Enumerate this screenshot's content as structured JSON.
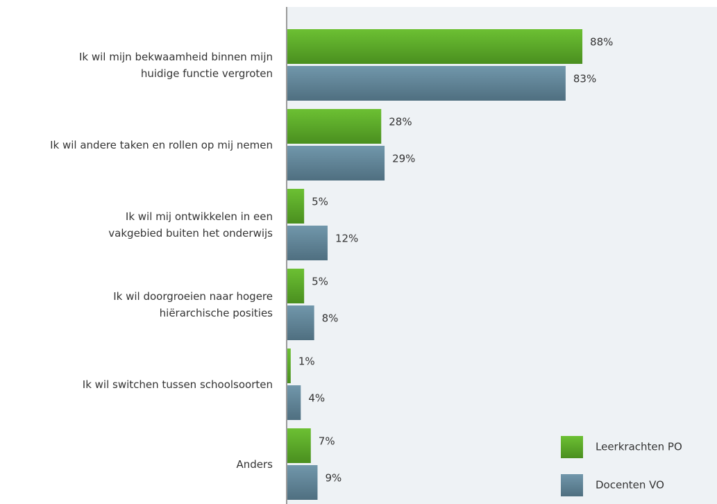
{
  "chart_data": {
    "type": "bar",
    "orientation": "horizontal",
    "categories": [
      "Ik wil mijn bekwaamheid binnen mijn\nhuidige functie vergroten",
      "Ik wil andere taken en rollen op mij nemen",
      "Ik wil mij ontwikkelen in een\nvakgebied buiten het onderwijs",
      "Ik wil doorgroeien naar hogere\nhiërarchische posities",
      "Ik wil switchen tussen schoolsoorten",
      "Anders"
    ],
    "series": [
      {
        "name": "Leerkrachten PO",
        "color": "#5fac2a",
        "values": [
          88,
          28,
          5,
          5,
          1,
          7
        ],
        "value_labels": [
          "88%",
          "28%",
          "5%",
          "5%",
          "1%",
          "7%"
        ]
      },
      {
        "name": "Docenten VO",
        "color": "#62869a",
        "values": [
          83,
          29,
          12,
          8,
          4,
          9
        ],
        "value_labels": [
          "83%",
          "29%",
          "12%",
          "8%",
          "4%",
          "9%"
        ]
      }
    ],
    "legend": "lower right"
  }
}
